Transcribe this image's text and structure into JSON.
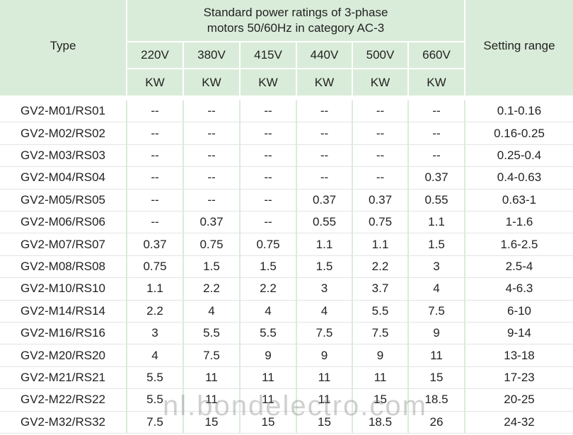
{
  "header": {
    "type": "Type",
    "ratings_title": "Standard power ratings of 3-phase motors 50/60Hz in category AC-3",
    "setting_range": "Setting range",
    "voltages": [
      "220V",
      "380V",
      "415V",
      "440V",
      "500V",
      "660V"
    ],
    "units": [
      "KW",
      "KW",
      "KW",
      "KW",
      "KW",
      "KW"
    ]
  },
  "table": {
    "rows": [
      [
        "GV2-M01/RS01",
        "--",
        "--",
        "--",
        "--",
        "--",
        "--",
        "0.1-0.16"
      ],
      [
        "GV2-M02/RS02",
        "--",
        "--",
        "--",
        "--",
        "--",
        "--",
        "0.16-0.25"
      ],
      [
        "GV2-M03/RS03",
        "--",
        "--",
        "--",
        "--",
        "--",
        "--",
        "0.25-0.4"
      ],
      [
        "GV2-M04/RS04",
        "--",
        "--",
        "--",
        "--",
        "--",
        "0.37",
        "0.4-0.63"
      ],
      [
        "GV2-M05/RS05",
        "--",
        "--",
        "--",
        "0.37",
        "0.37",
        "0.55",
        "0.63-1"
      ],
      [
        "GV2-M06/RS06",
        "--",
        "0.37",
        "--",
        "0.55",
        "0.75",
        "1.1",
        "1-1.6"
      ],
      [
        "GV2-M07/RS07",
        "0.37",
        "0.75",
        "0.75",
        "1.1",
        "1.1",
        "1.5",
        "1.6-2.5"
      ],
      [
        "GV2-M08/RS08",
        "0.75",
        "1.5",
        "1.5",
        "1.5",
        "2.2",
        "3",
        "2.5-4"
      ],
      [
        "GV2-M10/RS10",
        "1.1",
        "2.2",
        "2.2",
        "3",
        "3.7",
        "4",
        "4-6.3"
      ],
      [
        "GV2-M14/RS14",
        "2.2",
        "4",
        "4",
        "4",
        "5.5",
        "7.5",
        "6-10"
      ],
      [
        "GV2-M16/RS16",
        "3",
        "5.5",
        "5.5",
        "7.5",
        "7.5",
        "9",
        "9-14"
      ],
      [
        "GV2-M20/RS20",
        "4",
        "7.5",
        "9",
        "9",
        "9",
        "11",
        "13-18"
      ],
      [
        "GV2-M21/RS21",
        "5.5",
        "11",
        "11",
        "11",
        "11",
        "15",
        "17-23"
      ],
      [
        "GV2-M22/RS22",
        "5.5",
        "11",
        "11",
        "11",
        "15",
        "18.5",
        "20-25"
      ],
      [
        "GV2-M32/RS32",
        "7.5",
        "15",
        "15",
        "15",
        "18.5",
        "26",
        "24-32"
      ]
    ]
  },
  "watermark": "nl.bondelectro.com"
}
